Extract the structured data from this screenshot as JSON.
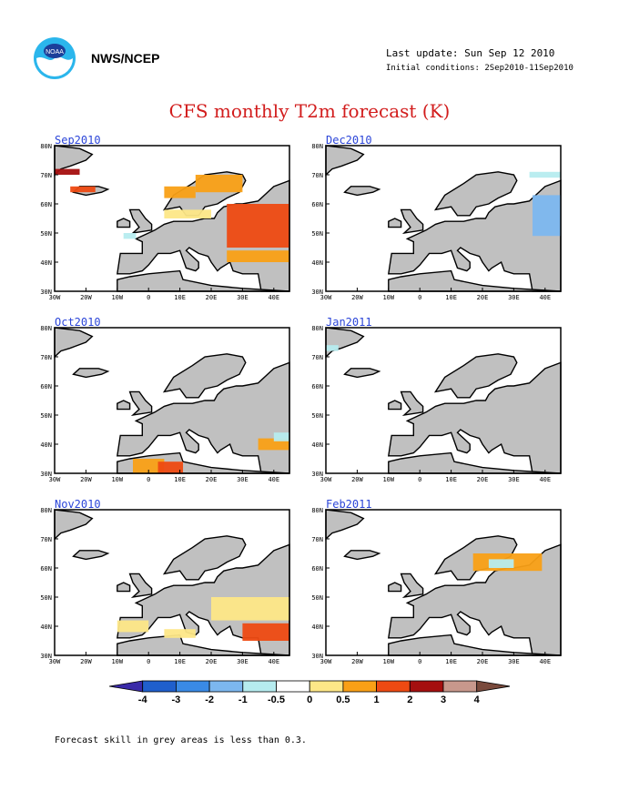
{
  "header": {
    "agency": "NWS/NCEP",
    "last_update": "Last update: Sun Sep 12 2010",
    "initial_conditions": "Initial conditions: 2Sep2010-11Sep2010",
    "logo_icon": "noaa-logo-icon"
  },
  "title": "CFS monthly T2m forecast (K)",
  "footnote": "Forecast skill in grey areas is less than 0.3.",
  "axes": {
    "lon_ticks": [
      "30W",
      "20W",
      "10W",
      "0",
      "10E",
      "20E",
      "30E",
      "40E"
    ],
    "lat_ticks": [
      "30N",
      "40N",
      "50N",
      "60N",
      "70N",
      "80N"
    ]
  },
  "panels": [
    {
      "label": "Sep2010"
    },
    {
      "label": "Dec2010"
    },
    {
      "label": "Oct2010"
    },
    {
      "label": "Jan2011"
    },
    {
      "label": "Nov2010"
    },
    {
      "label": "Feb2011"
    }
  ],
  "colorbar": {
    "labels": [
      "-4",
      "-3",
      "-2",
      "-1",
      "-0.5",
      "0",
      "0.5",
      "1",
      "2",
      "3",
      "4"
    ],
    "colors": [
      "#3a2aa8",
      "#1f5fcc",
      "#3a8ae6",
      "#7cb7ef",
      "#b6ecef",
      "#ffffff",
      "#fde787",
      "#f9a016",
      "#ee4a12",
      "#a50f0f",
      "#c8988c",
      "#7a4a3c"
    ]
  },
  "colors": {
    "grey_low_skill": "#c0c0c0",
    "panel_label": "#2b45d8",
    "title": "#d21c1c"
  }
}
